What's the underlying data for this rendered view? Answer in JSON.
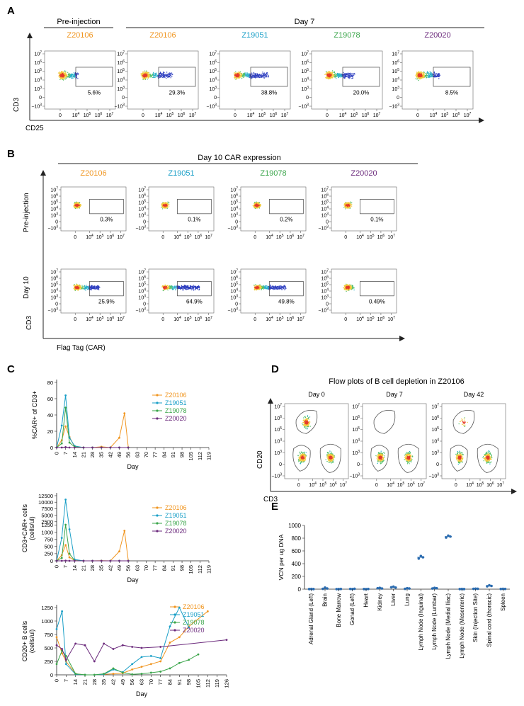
{
  "colors": {
    "Z20106": "#f0951f",
    "Z19051": "#1a9fc7",
    "Z19078": "#3aa54a",
    "Z20020": "#6b2a7c",
    "axis": "#222222",
    "gate": "#555555",
    "vcn": "#2b6cb0"
  },
  "panel_letters": {
    "A": "A",
    "B": "B",
    "C": "C",
    "D": "D",
    "E": "E"
  },
  "flow_ticks": {
    "y": [
      "10^7",
      "10^6",
      "10^5",
      "10^4",
      "10^3",
      "0",
      "−10^3"
    ],
    "x": [
      "0",
      "10^4",
      "10^5",
      "10^6",
      "10^7"
    ]
  },
  "panelA": {
    "group_pre": "Pre-injection",
    "group_day7": "Day 7",
    "y_axis": "CD3",
    "x_axis": "CD25",
    "plots": [
      {
        "sample": "Z20106",
        "pct": "5.6%",
        "spread": 0.35
      },
      {
        "sample": "Z20106",
        "pct": "29.3%",
        "spread": 0.6
      },
      {
        "sample": "Z19051",
        "pct": "38.8%",
        "spread": 0.7
      },
      {
        "sample": "Z19078",
        "pct": "20.0%",
        "spread": 0.55
      },
      {
        "sample": "Z20020",
        "pct": "8.5%",
        "spread": 0.45
      }
    ]
  },
  "panelB": {
    "title": "Day 10 CAR expression",
    "row_pre": "Pre-injection",
    "row_day10": "Day 10",
    "y_axis": "CD3",
    "x_axis": "Flag Tag (CAR)",
    "samples": [
      "Z20106",
      "Z19051",
      "Z19078",
      "Z20020"
    ],
    "pct_pre": [
      "0.3%",
      "0.1%",
      "0.2%",
      "0.1%"
    ],
    "pct_day10": [
      "25.9%",
      "64.9%",
      "49.8%",
      "0.49%"
    ],
    "spread_day10": [
      0.55,
      0.85,
      0.7,
      0.15
    ]
  },
  "panelD": {
    "title": "Flow plots of B cell depletion in Z20106",
    "y_axis": "CD20",
    "x_axis": "CD3",
    "days": [
      "Day 0",
      "Day 7",
      "Day 42"
    ],
    "bcell_frac": [
      1.0,
      0.0,
      0.15
    ]
  },
  "chart_data": [
    {
      "id": "C1",
      "type": "line",
      "ylabel": "%CAR+ of CD3+",
      "xlabel": "Day",
      "ylim": [
        0,
        80
      ],
      "yticks": [
        0,
        20,
        40,
        60,
        80
      ],
      "xlim": [
        0,
        119
      ],
      "xticks": [
        0,
        7,
        14,
        21,
        28,
        35,
        42,
        49,
        56,
        63,
        70,
        77,
        84,
        91,
        98,
        105,
        112,
        119
      ],
      "series": [
        {
          "name": "Z20106",
          "x": [
            0,
            4,
            7,
            10,
            14,
            21,
            28,
            35,
            42,
            49,
            53,
            56
          ],
          "y": [
            0,
            9,
            26,
            13,
            1,
            0,
            0,
            1,
            0,
            12,
            42,
            0
          ]
        },
        {
          "name": "Z19051",
          "x": [
            0,
            4,
            7,
            10,
            14,
            21,
            28,
            35,
            42,
            49,
            56
          ],
          "y": [
            0,
            27,
            64,
            12,
            2,
            0,
            0,
            0,
            0,
            0,
            0
          ]
        },
        {
          "name": "Z19078",
          "x": [
            0,
            4,
            7,
            10,
            14,
            21,
            28,
            35,
            42,
            49,
            56
          ],
          "y": [
            0,
            5,
            49,
            6,
            1,
            0,
            0,
            0,
            0,
            0,
            0
          ]
        },
        {
          "name": "Z20020",
          "x": [
            0,
            4,
            7,
            10,
            14,
            21,
            28,
            35,
            42,
            49,
            56
          ],
          "y": [
            0,
            0,
            0.5,
            0,
            0,
            0,
            0,
            0,
            0,
            0,
            0
          ]
        }
      ]
    },
    {
      "id": "C2",
      "type": "line",
      "ylabel": "CD3+CAR+ cells",
      "ylabel2": "(cells/ul)",
      "xlabel": "Day",
      "ylim": [
        0,
        12500
      ],
      "yticks": [
        0,
        250,
        500,
        750,
        1000,
        1250,
        2500,
        5000,
        7500,
        10000,
        12500
      ],
      "ytick_labels": [
        "0",
        "250",
        "500",
        "750",
        "1000",
        "1250",
        "2500",
        "5000",
        "7500",
        "10000",
        "12500"
      ],
      "xlim": [
        0,
        119
      ],
      "xticks": [
        0,
        7,
        14,
        21,
        28,
        35,
        42,
        49,
        56,
        63,
        70,
        77,
        84,
        91,
        98,
        105,
        112,
        119
      ],
      "series": [
        {
          "name": "Z20106",
          "x": [
            0,
            4,
            7,
            10,
            14,
            21,
            28,
            35,
            42,
            49,
            53,
            56
          ],
          "y": [
            0,
            200,
            550,
            120,
            10,
            0,
            0,
            5,
            0,
            330,
            1050,
            0
          ]
        },
        {
          "name": "Z19051",
          "x": [
            0,
            4,
            7,
            10,
            14,
            21,
            28,
            35,
            42,
            49,
            56
          ],
          "y": [
            0,
            800,
            11000,
            1100,
            50,
            0,
            0,
            0,
            0,
            0,
            0
          ]
        },
        {
          "name": "Z19078",
          "x": [
            0,
            4,
            7,
            10,
            14,
            21,
            28,
            35,
            42,
            49,
            56
          ],
          "y": [
            0,
            100,
            1350,
            250,
            10,
            0,
            0,
            0,
            0,
            0,
            0
          ]
        },
        {
          "name": "Z20020",
          "x": [
            0,
            4,
            7,
            10,
            14,
            21,
            28,
            35,
            42,
            49,
            56
          ],
          "y": [
            0,
            0,
            5,
            0,
            0,
            0,
            0,
            0,
            0,
            0,
            0
          ]
        }
      ]
    },
    {
      "id": "C3",
      "type": "line",
      "ylabel": "CD20+ B cells",
      "ylabel2": "(cells/ul)",
      "xlabel": "Day",
      "ylim": [
        0,
        1250
      ],
      "yticks": [
        0,
        250,
        500,
        750,
        1000,
        1250
      ],
      "xlim": [
        0,
        126
      ],
      "xticks": [
        0,
        7,
        14,
        21,
        28,
        35,
        42,
        49,
        56,
        63,
        70,
        77,
        84,
        91,
        98,
        105,
        112,
        119,
        126
      ],
      "series": [
        {
          "name": "Z20106",
          "x": [
            0,
            4,
            7,
            14,
            21,
            28,
            35,
            42,
            49,
            56,
            63,
            70,
            77,
            84,
            91,
            98,
            112
          ],
          "y": [
            700,
            400,
            250,
            20,
            0,
            0,
            10,
            20,
            30,
            100,
            150,
            200,
            250,
            600,
            700,
            900,
            1180
          ]
        },
        {
          "name": "Z19051",
          "x": [
            0,
            4,
            7,
            14,
            21,
            28,
            35,
            42,
            49,
            56,
            63,
            70,
            77,
            84,
            91,
            98
          ],
          "y": [
            850,
            1180,
            200,
            10,
            0,
            0,
            10,
            100,
            50,
            200,
            330,
            350,
            310,
            900,
            1250,
            880
          ]
        },
        {
          "name": "Z19078",
          "x": [
            0,
            4,
            7,
            14,
            21,
            28,
            35,
            42,
            49,
            56,
            63,
            70,
            77,
            84,
            91,
            98,
            105
          ],
          "y": [
            200,
            450,
            350,
            20,
            0,
            0,
            20,
            120,
            40,
            10,
            20,
            40,
            60,
            120,
            220,
            280,
            380
          ]
        },
        {
          "name": "Z20020",
          "x": [
            0,
            4,
            7,
            14,
            21,
            28,
            35,
            42,
            49,
            56,
            63,
            77,
            126
          ],
          "y": [
            550,
            480,
            280,
            580,
            550,
            250,
            580,
            480,
            550,
            520,
            500,
            520,
            650
          ]
        }
      ]
    },
    {
      "id": "E",
      "type": "scatter",
      "ylabel": "VCN per ug DNA",
      "ylim": [
        0,
        1000
      ],
      "yticks": [
        0,
        200,
        400,
        600,
        800,
        1000
      ],
      "categories": [
        "Adrenal Gland (Left)",
        "Brain",
        "Bone Marrow",
        "Gonad (Left)",
        "Heart",
        "Kidney",
        "Liver",
        "Lung",
        "Lymph Node (Inguinal)",
        "Lymph Node (Lumbar)",
        "Lymph Node (Medial Iliac)",
        "Lymph Node (Mesenteric)",
        "Skin (Injection Site)",
        "Spinal cord (thoracic)",
        "Spleen"
      ],
      "values": [
        [
          2,
          3,
          2
        ],
        [
          5,
          25,
          10
        ],
        [
          1,
          2,
          3
        ],
        [
          4,
          2,
          6
        ],
        [
          2,
          1,
          3
        ],
        [
          15,
          20,
          10
        ],
        [
          30,
          40,
          25
        ],
        [
          5,
          15,
          10
        ],
        [
          480,
          520,
          500
        ],
        [
          10,
          20,
          15
        ],
        [
          810,
          840,
          825
        ],
        [
          2,
          3,
          2
        ],
        [
          5,
          8,
          6
        ],
        [
          45,
          60,
          50
        ],
        [
          3,
          5,
          4
        ]
      ]
    }
  ]
}
